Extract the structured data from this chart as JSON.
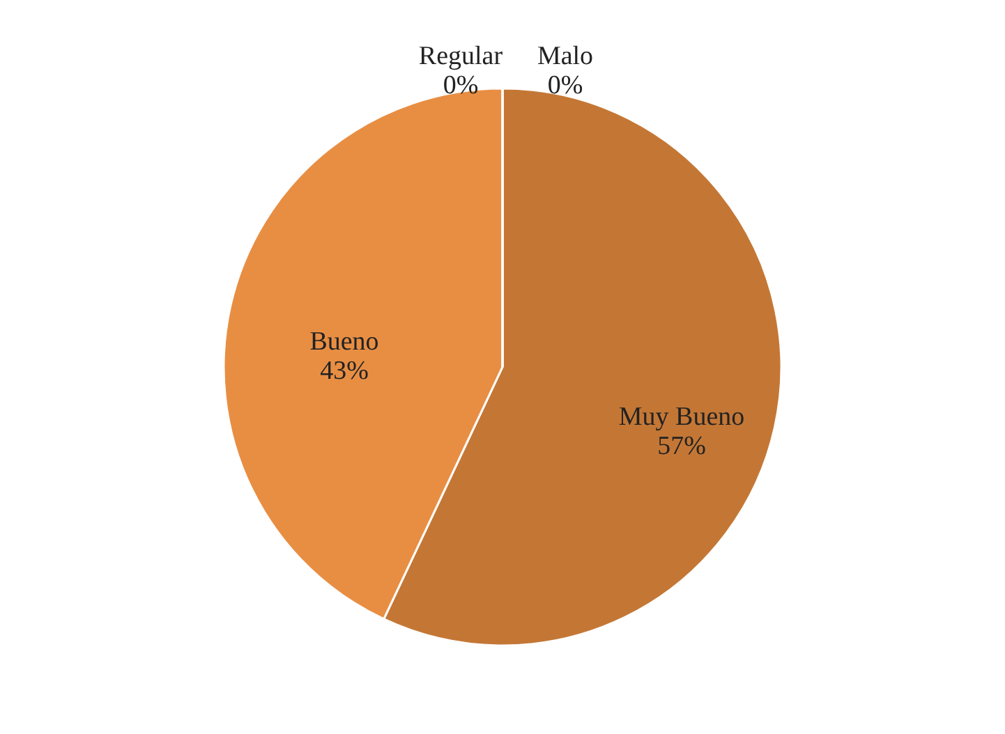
{
  "chart_data": {
    "type": "pie",
    "categories": [
      "Muy Bueno",
      "Bueno",
      "Regular",
      "Malo"
    ],
    "values": [
      57,
      43,
      0,
      0
    ],
    "value_labels": [
      "57%",
      "43%",
      "0%",
      "0%"
    ],
    "colors": [
      "#c47735",
      "#e88e43",
      "#a5a5a5",
      "#ffc000"
    ]
  }
}
